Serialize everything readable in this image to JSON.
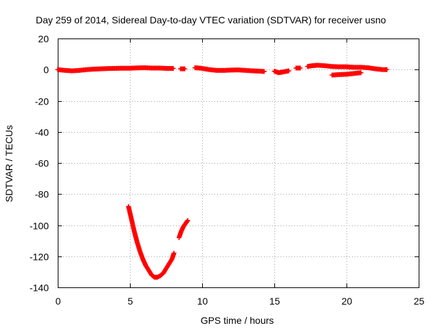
{
  "chart_data": {
    "type": "scatter",
    "title": "Day 259 of 2014, Sidereal Day-to-day VTEC variation (SDTVAR) for receiver usno",
    "xlabel": "GPS time / hours",
    "ylabel": "SDTVAR / TECUs",
    "xlim": [
      0,
      25
    ],
    "ylim": [
      -140,
      20
    ],
    "x_ticks": [
      0,
      5,
      10,
      15,
      20,
      25
    ],
    "y_ticks": [
      20,
      0,
      -20,
      -40,
      -60,
      -80,
      -100,
      -120,
      -140
    ],
    "x_tick_labels": [
      "0",
      "5",
      "10",
      "15",
      "20",
      "25"
    ],
    "y_tick_labels": [
      "20",
      "0",
      "-20",
      "-40",
      "-60",
      "-80",
      "-100",
      "-120",
      "-140"
    ],
    "grid": true,
    "marker": "plus",
    "series": [
      {
        "name": "SDTVAR",
        "color": "#ff0000",
        "segments": [
          {
            "x": [
              0,
              0.5,
              1,
              1.5,
              2,
              2.5,
              3,
              3.5,
              4,
              4.5,
              5,
              5.5,
              6,
              6.5,
              7,
              7.5,
              8
            ],
            "y": [
              0,
              -0.5,
              -0.8,
              -0.5,
              0,
              0.3,
              0.5,
              0.7,
              0.8,
              0.9,
              0.9,
              1.1,
              1.2,
              1.0,
              1.0,
              0.8,
              0.8
            ]
          },
          {
            "x": [
              8.5,
              8.8
            ],
            "y": [
              0.5,
              0.5
            ]
          },
          {
            "x": [
              9.5,
              10,
              10.5,
              11,
              11.5,
              12,
              12.5,
              13,
              13.5,
              14,
              14.3
            ],
            "y": [
              1.2,
              0.8,
              0,
              -0.5,
              -0.5,
              -0.3,
              -0.2,
              -0.5,
              -0.8,
              -1.0,
              -1.2
            ]
          },
          {
            "x": [
              15,
              15.3,
              15.6,
              16
            ],
            "y": [
              -1.0,
              -2.0,
              -1.5,
              -0.8
            ]
          },
          {
            "x": [
              16.5,
              16.8
            ],
            "y": [
              1.0,
              1.0
            ]
          },
          {
            "x": [
              17.3,
              17.6,
              18,
              18.5,
              19,
              19.5,
              20,
              20.5,
              21,
              21.5,
              22,
              22.5,
              22.8
            ],
            "y": [
              2.0,
              2.5,
              2.8,
              2.5,
              2.0,
              1.8,
              1.8,
              1.5,
              1.5,
              1.2,
              0.5,
              0,
              0
            ]
          },
          {
            "x": [
              19,
              19.5,
              20,
              20.5,
              21
            ],
            "y": [
              -3.5,
              -3.2,
              -3.0,
              -2.5,
              -2.0
            ]
          },
          {
            "x": [
              4.9,
              5.1,
              5.3,
              5.5,
              5.7,
              5.9,
              6.1,
              6.3,
              6.5,
              6.7,
              6.9,
              7.1,
              7.3,
              7.5,
              7.7,
              7.9,
              8.05
            ],
            "y": [
              -88,
              -96,
              -104,
              -111,
              -117,
              -122,
              -126,
              -129,
              -132,
              -133.5,
              -133.5,
              -132.5,
              -131,
              -128,
              -125,
              -122,
              -118
            ]
          },
          {
            "x": [
              8.4,
              8.55,
              8.7,
              8.85,
              9.0
            ],
            "y": [
              -108,
              -104,
              -101,
              -99,
              -97
            ]
          }
        ]
      }
    ]
  }
}
